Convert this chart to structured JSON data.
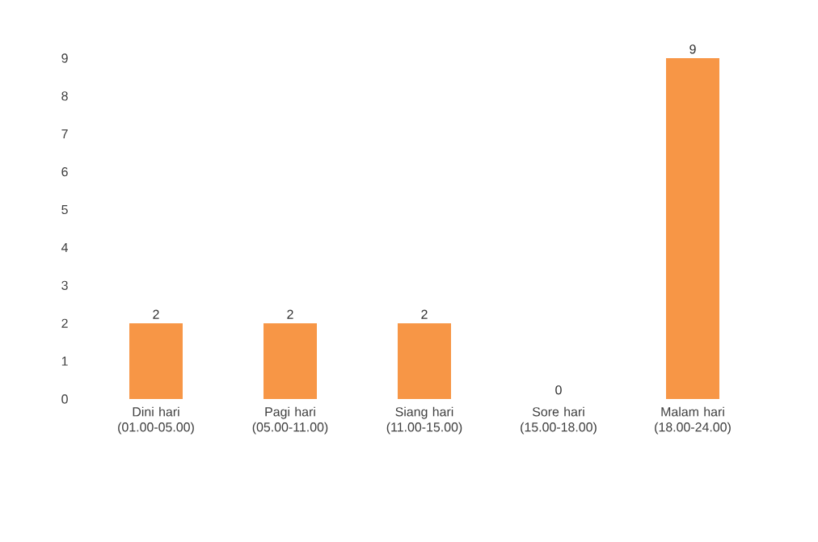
{
  "chart_data": {
    "type": "bar",
    "categories": [
      "Dini hari (01.00-05.00)",
      "Pagi hari (05.00-11.00)",
      "Siang hari (11.00-15.00)",
      "Sore hari (15.00-18.00)",
      "Malam hari (18.00-24.00)"
    ],
    "values": [
      2,
      2,
      2,
      0,
      9
    ],
    "color": "#f79646",
    "ylim": [
      0,
      9
    ],
    "yticks": [
      0,
      1,
      2,
      3,
      4,
      5,
      6,
      7,
      8,
      9
    ],
    "data_labels": true,
    "grid": false
  }
}
